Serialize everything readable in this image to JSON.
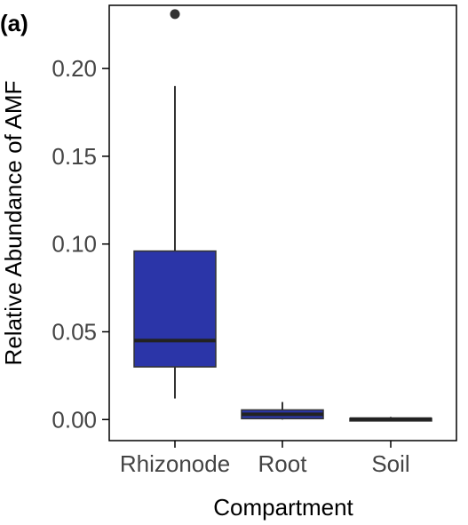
{
  "panel_label": "(a)",
  "chart_data": {
    "type": "box",
    "xlabel": "Compartment",
    "ylabel": "Relative Abundance of AMF",
    "ylim": [
      -0.012,
      0.236
    ],
    "yticks": [
      0.0,
      0.05,
      0.1,
      0.15,
      0.2
    ],
    "ytick_labels": [
      "0.00",
      "0.05",
      "0.10",
      "0.15",
      "0.20"
    ],
    "categories": [
      "Rhizonode",
      "Root",
      "Soil"
    ],
    "boxes": [
      {
        "category": "Rhizonode",
        "whisker_low": 0.012,
        "q1": 0.03,
        "median": 0.045,
        "q3": 0.096,
        "whisker_high": 0.19,
        "outliers": [
          0.231
        ],
        "fill": "#2b35a8"
      },
      {
        "category": "Root",
        "whisker_low": 0.0,
        "q1": 0.0005,
        "median": 0.003,
        "q3": 0.0055,
        "whisker_high": 0.01,
        "outliers": [],
        "fill": "#2b35a8"
      },
      {
        "category": "Soil",
        "whisker_low": 0.0,
        "q1": 0.0,
        "median": 0.0003,
        "q3": 0.0007,
        "whisker_high": 0.0015,
        "outliers": [],
        "fill": "#2b35a8"
      }
    ],
    "grid": false,
    "legend": "none"
  }
}
